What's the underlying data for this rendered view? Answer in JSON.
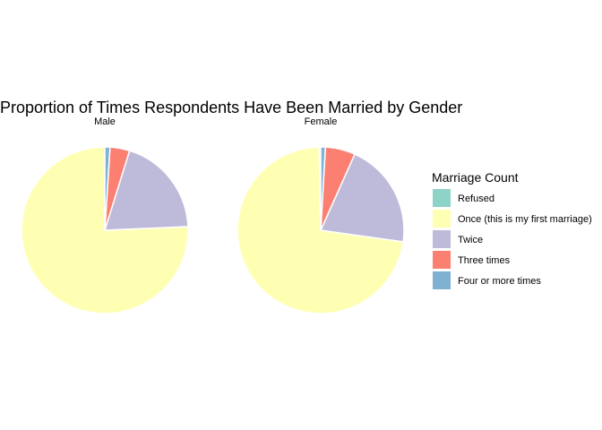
{
  "chart_data": {
    "type": "pie",
    "title": "Proportion of Times Respondents Have Been Married by Gender",
    "legend": {
      "title": "Marriage Count",
      "placement": "right",
      "entries": [
        {
          "label": "Refused",
          "color": "#8DD3C7"
        },
        {
          "label": "Once (this is my first marriage)",
          "color": "#FFFFB3"
        },
        {
          "label": "Twice",
          "color": "#BEBADA"
        },
        {
          "label": "Three times",
          "color": "#FB8072"
        },
        {
          "label": "Four or more times",
          "color": "#80B1D3"
        }
      ]
    },
    "categories": [
      "Refused",
      "Once (this is my first marriage)",
      "Twice",
      "Three times",
      "Four or more times"
    ],
    "series": [
      {
        "name": "Male",
        "values": [
          0.0,
          0.757,
          0.195,
          0.038,
          0.01
        ]
      },
      {
        "name": "Female",
        "values": [
          0.003,
          0.725,
          0.205,
          0.058,
          0.009
        ]
      }
    ]
  }
}
